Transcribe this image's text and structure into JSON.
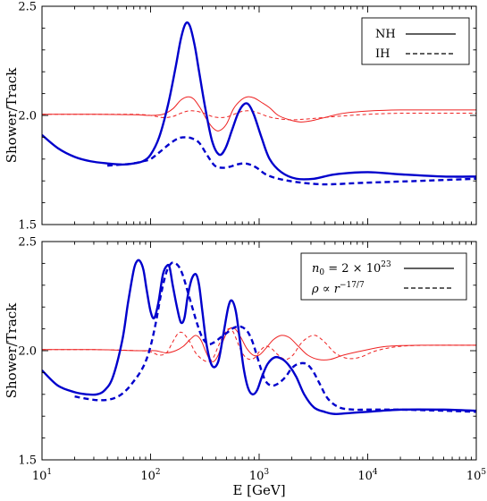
{
  "chart_data": [
    {
      "type": "line",
      "ylabel": "Shower/Track",
      "xlabel": "",
      "xscale": "log",
      "xlim": [
        10,
        100000
      ],
      "ylim": [
        1.5,
        2.5
      ],
      "xticks": [
        "10^1",
        "10^2",
        "10^3",
        "10^4",
        "10^5"
      ],
      "yticks": [
        "1.5",
        "2.0",
        "2.5"
      ],
      "legend": {
        "position": "top-right",
        "entries": [
          "NH",
          "IH"
        ]
      },
      "series": [
        {
          "name": "NH",
          "color": "#0000cc",
          "width": 2.4,
          "dash": "solid",
          "x": [
            10,
            14,
            20,
            28,
            40,
            55,
            70,
            85,
            100,
            120,
            145,
            170,
            190,
            210,
            230,
            255,
            280,
            320,
            370,
            430,
            490,
            560,
            640,
            720,
            800,
            900,
            1050,
            1250,
            1600,
            2200,
            3200,
            5000,
            10000,
            20000,
            50000,
            100000
          ],
          "y": [
            1.91,
            1.85,
            1.81,
            1.79,
            1.78,
            1.775,
            1.78,
            1.79,
            1.82,
            1.9,
            2.05,
            2.22,
            2.35,
            2.42,
            2.41,
            2.32,
            2.2,
            2.03,
            1.88,
            1.82,
            1.85,
            1.93,
            2.01,
            2.05,
            2.05,
            2.0,
            1.9,
            1.8,
            1.74,
            1.71,
            1.71,
            1.73,
            1.74,
            1.73,
            1.72,
            1.72
          ]
        },
        {
          "name": "IH",
          "color": "#0000cc",
          "width": 2.4,
          "dash": "6,4",
          "x": [
            40,
            55,
            70,
            85,
            100,
            120,
            150,
            180,
            210,
            240,
            280,
            330,
            390,
            460,
            540,
            620,
            720,
            820,
            950,
            1150,
            1500,
            2200,
            3500,
            5000,
            8000,
            15000,
            30000,
            100000
          ],
          "y": [
            1.77,
            1.775,
            1.78,
            1.79,
            1.8,
            1.83,
            1.87,
            1.895,
            1.9,
            1.895,
            1.875,
            1.82,
            1.77,
            1.76,
            1.765,
            1.775,
            1.78,
            1.775,
            1.76,
            1.73,
            1.71,
            1.695,
            1.685,
            1.685,
            1.69,
            1.695,
            1.7,
            1.71
          ]
        },
        {
          "name": "NH (red)",
          "color": "#ee2222",
          "width": 1,
          "dash": "solid",
          "x": [
            10,
            30,
            70,
            100,
            130,
            160,
            190,
            220,
            250,
            290,
            330,
            380,
            430,
            500,
            580,
            680,
            780,
            900,
            1050,
            1250,
            1500,
            1900,
            2400,
            3000,
            4000,
            6000,
            10000,
            20000,
            50000,
            100000
          ],
          "y": [
            2.005,
            2.005,
            2.003,
            2.0,
            2.005,
            2.03,
            2.07,
            2.085,
            2.075,
            2.03,
            1.98,
            1.94,
            1.93,
            1.96,
            2.03,
            2.07,
            2.085,
            2.08,
            2.06,
            2.035,
            2.0,
            1.98,
            1.97,
            1.975,
            1.99,
            2.01,
            2.02,
            2.025,
            2.025,
            2.025
          ]
        },
        {
          "name": "IH (red)",
          "color": "#ee2222",
          "width": 1,
          "dash": "4,3",
          "x": [
            10,
            30,
            70,
            100,
            130,
            160,
            190,
            220,
            260,
            310,
            370,
            440,
            520,
            620,
            720,
            850,
            1000,
            1200,
            1500,
            2000,
            3000,
            5000,
            10000,
            20000,
            50000,
            100000
          ],
          "y": [
            2.005,
            2.005,
            2.005,
            2.0,
            1.99,
            1.995,
            2.01,
            2.02,
            2.02,
            2.01,
            1.995,
            1.99,
            1.995,
            2.01,
            2.02,
            2.02,
            2.01,
            1.995,
            1.985,
            1.98,
            1.985,
            1.995,
            2.005,
            2.01,
            2.01,
            2.01
          ]
        }
      ]
    },
    {
      "type": "line",
      "ylabel": "Shower/Track",
      "xlabel": "E [GeV]",
      "xscale": "log",
      "xlim": [
        10,
        100000
      ],
      "ylim": [
        1.5,
        2.5
      ],
      "xticks": [
        "10^1",
        "10^2",
        "10^3",
        "10^4",
        "10^5"
      ],
      "yticks": [
        "1.5",
        "2.0",
        "2.5"
      ],
      "legend": {
        "position": "top-right",
        "entries": [
          "n0 = 2×10^23",
          "ρ ∝ r^-17/7"
        ]
      },
      "series": [
        {
          "name": "n0 = 2×10^23",
          "color": "#0000cc",
          "width": 2.4,
          "dash": "solid",
          "x": [
            10,
            14,
            20,
            26,
            32,
            38,
            45,
            55,
            62,
            70,
            75,
            80,
            86,
            92,
            100,
            108,
            118,
            130,
            142,
            150,
            160,
            175,
            190,
            205,
            220,
            240,
            262,
            280,
            300,
            330,
            370,
            420,
            470,
            520,
            560,
            610,
            660,
            720,
            790,
            870,
            960,
            1060,
            1200,
            1400,
            1650,
            1900,
            2200,
            2600,
            3200,
            4000,
            5000,
            7000,
            10000,
            20000,
            50000,
            100000
          ],
          "y": [
            1.91,
            1.84,
            1.81,
            1.8,
            1.8,
            1.82,
            1.88,
            2.05,
            2.22,
            2.37,
            2.41,
            2.41,
            2.37,
            2.28,
            2.18,
            2.15,
            2.22,
            2.35,
            2.39,
            2.38,
            2.3,
            2.2,
            2.13,
            2.15,
            2.25,
            2.33,
            2.35,
            2.3,
            2.18,
            2.02,
            1.93,
            1.95,
            2.08,
            2.2,
            2.23,
            2.18,
            2.06,
            1.92,
            1.83,
            1.8,
            1.82,
            1.88,
            1.94,
            1.97,
            1.96,
            1.93,
            1.88,
            1.8,
            1.74,
            1.72,
            1.71,
            1.715,
            1.72,
            1.73,
            1.73,
            1.725
          ]
        },
        {
          "name": "ρ ∝ r^-17/7",
          "color": "#0000cc",
          "width": 2.4,
          "dash": "6,4",
          "x": [
            20,
            30,
            40,
            50,
            60,
            70,
            80,
            90,
            100,
            112,
            125,
            140,
            155,
            170,
            185,
            200,
            220,
            245,
            270,
            300,
            340,
            390,
            440,
            500,
            560,
            620,
            680,
            740,
            800,
            870,
            950,
            1050,
            1150,
            1300,
            1500,
            1750,
            2000,
            2300,
            2700,
            3100,
            3600,
            4300,
            5500,
            7500,
            10000,
            20000,
            50000,
            100000
          ],
          "y": [
            1.79,
            1.775,
            1.775,
            1.79,
            1.82,
            1.86,
            1.9,
            1.95,
            2.02,
            2.13,
            2.26,
            2.36,
            2.4,
            2.4,
            2.38,
            2.34,
            2.27,
            2.19,
            2.12,
            2.06,
            2.03,
            2.04,
            2.06,
            2.08,
            2.1,
            2.11,
            2.11,
            2.1,
            2.08,
            2.04,
            1.98,
            1.91,
            1.86,
            1.84,
            1.85,
            1.88,
            1.92,
            1.94,
            1.94,
            1.91,
            1.85,
            1.78,
            1.74,
            1.73,
            1.73,
            1.73,
            1.725,
            1.72
          ]
        },
        {
          "name": "n0 (red)",
          "color": "#ee2222",
          "width": 1,
          "dash": "solid",
          "x": [
            10,
            30,
            80,
            110,
            140,
            170,
            200,
            230,
            260,
            290,
            320,
            350,
            380,
            420,
            470,
            530,
            600,
            680,
            770,
            880,
            1000,
            1150,
            1350,
            1600,
            1900,
            2300,
            2800,
            3500,
            4500,
            6000,
            9000,
            15000,
            30000,
            100000
          ],
          "y": [
            2.005,
            2.005,
            2.0,
            2.0,
            1.99,
            2.0,
            2.02,
            2.05,
            2.07,
            2.05,
            2.0,
            1.96,
            1.95,
            1.98,
            2.05,
            2.1,
            2.1,
            2.06,
            2.01,
            1.98,
            1.98,
            2.01,
            2.05,
            2.07,
            2.06,
            2.02,
            1.98,
            1.96,
            1.96,
            1.98,
            2.0,
            2.02,
            2.025,
            2.025
          ]
        },
        {
          "name": "ρ (red)",
          "color": "#ee2222",
          "width": 1,
          "dash": "4,3",
          "x": [
            10,
            30,
            80,
            100,
            120,
            140,
            160,
            180,
            200,
            230,
            260,
            300,
            340,
            380,
            420,
            470,
            520,
            570,
            620,
            680,
            750,
            830,
            920,
            1020,
            1150,
            1300,
            1500,
            1750,
            2050,
            2400,
            2800,
            3300,
            4000,
            5000,
            6500,
            8500,
            12000,
            20000,
            40000,
            100000
          ],
          "y": [
            2.005,
            2.005,
            2.0,
            1.995,
            1.98,
            1.99,
            2.04,
            2.08,
            2.08,
            2.04,
            1.99,
            1.96,
            1.95,
            1.97,
            2.02,
            2.07,
            2.1,
            2.09,
            2.05,
            2.0,
            1.97,
            1.96,
            1.97,
            2.0,
            2.02,
            2.01,
            1.98,
            1.96,
            1.98,
            2.03,
            2.06,
            2.07,
            2.04,
            1.99,
            1.965,
            1.97,
            2.0,
            2.02,
            2.025,
            2.025
          ]
        }
      ]
    }
  ]
}
